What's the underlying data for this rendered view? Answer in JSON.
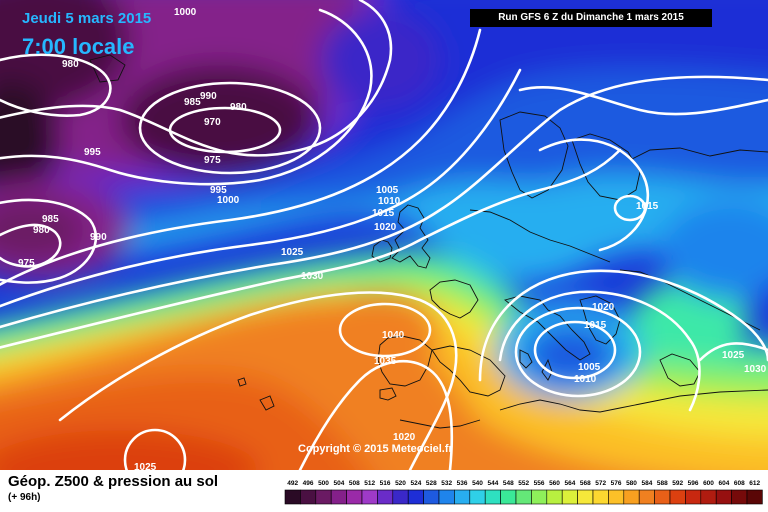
{
  "header": {
    "date": "Jeudi 5 mars 2015",
    "time": "7:00 locale",
    "run": "Run GFS 6 Z du Dimanche 1 mars 2015"
  },
  "map": {
    "copyright": "Copyright © 2015 Meteociel.fr",
    "isobar_labels": [
      "1000",
      "980",
      "985",
      "990",
      "980",
      "970",
      "995",
      "975",
      "995",
      "1000",
      "985",
      "980",
      "990",
      "975",
      "1005",
      "1010",
      "1015",
      "1020",
      "1025",
      "1030",
      "1040",
      "1035",
      "1020",
      "1025",
      "1020",
      "1015",
      "1015",
      "1005",
      "1010",
      "1025",
      "1030"
    ]
  },
  "legend": {
    "title": "Géop. Z500 & pression au sol",
    "subtitle": "(+ 96h)",
    "scale_values": [
      "492",
      "496",
      "500",
      "504",
      "508",
      "512",
      "516",
      "520",
      "524",
      "528",
      "532",
      "536",
      "540",
      "544",
      "548",
      "552",
      "556",
      "560",
      "564",
      "568",
      "572",
      "576",
      "580",
      "584",
      "588",
      "592",
      "596",
      "600",
      "604",
      "608",
      "612"
    ],
    "scale_colors": [
      "#2a0a25",
      "#4a1042",
      "#6a1a63",
      "#84208a",
      "#9a2aa8",
      "#9e3ac8",
      "#6a2cc8",
      "#3a28c8",
      "#1e2ed6",
      "#1e5ae0",
      "#1f84ec",
      "#28aef0",
      "#2fd0e8",
      "#2ee0c0",
      "#3ae898",
      "#64e878",
      "#8ef05a",
      "#b8f040",
      "#dcf03a",
      "#f6e83a",
      "#fcd830",
      "#fcc028",
      "#f8a020",
      "#f08020",
      "#e86018",
      "#dc4010",
      "#c82810",
      "#b01c10",
      "#961010",
      "#760a0a",
      "#5a0606"
    ]
  }
}
